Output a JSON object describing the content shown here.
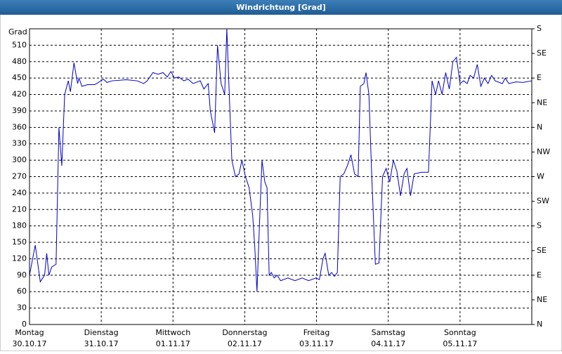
{
  "chart_data": {
    "type": "line",
    "title": "Windrichtung [Grad]",
    "y_label": "Grad",
    "color": "#0000cc",
    "grid": true,
    "xlim": [
      0,
      7
    ],
    "xticks": [
      {
        "value": 0,
        "label": "Montag",
        "date": "30.10.17"
      },
      {
        "value": 1,
        "label": "Dienstag",
        "date": "31.10.17"
      },
      {
        "value": 2,
        "label": "Mittwoch",
        "date": "01.11.17"
      },
      {
        "value": 3,
        "label": "Donnerstag",
        "date": "02.11.17"
      },
      {
        "value": 4,
        "label": "Freitag",
        "date": "03.11.17"
      },
      {
        "value": 5,
        "label": "Samstag",
        "date": "04.11.17"
      },
      {
        "value": 6,
        "label": "Sonntag",
        "date": "05.11.17"
      }
    ],
    "ylim": [
      0,
      540
    ],
    "yticks": [
      0,
      30,
      60,
      90,
      120,
      150,
      180,
      210,
      240,
      270,
      300,
      330,
      360,
      390,
      420,
      450,
      480,
      510
    ],
    "y2lim": [
      0,
      540
    ],
    "y2ticks": [
      {
        "value": 0,
        "label": "N"
      },
      {
        "value": 45,
        "label": "NE"
      },
      {
        "value": 90,
        "label": "E"
      },
      {
        "value": 135,
        "label": "SE"
      },
      {
        "value": 180,
        "label": "S"
      },
      {
        "value": 225,
        "label": "SW"
      },
      {
        "value": 270,
        "label": "W"
      },
      {
        "value": 315,
        "label": "NW"
      },
      {
        "value": 360,
        "label": "N"
      },
      {
        "value": 405,
        "label": "NE"
      },
      {
        "value": 450,
        "label": "E"
      },
      {
        "value": 495,
        "label": "SE"
      },
      {
        "value": 540,
        "label": "S"
      }
    ],
    "x": [
      0,
      0.08,
      0.15,
      0.21,
      0.24,
      0.27,
      0.31,
      0.37,
      0.41,
      0.45,
      0.49,
      0.54,
      0.57,
      0.62,
      0.67,
      0.69,
      0.73,
      0.81,
      0.91,
      0.96,
      1.03,
      1.08,
      1.15,
      1.35,
      1.5,
      1.59,
      1.64,
      1.72,
      1.79,
      1.86,
      1.92,
      1.97,
      2.02,
      2.08,
      2.15,
      2.21,
      2.28,
      2.38,
      2.43,
      2.49,
      2.52,
      2.58,
      2.62,
      2.67,
      2.72,
      2.75,
      2.79,
      2.82,
      2.87,
      2.92,
      2.96,
      3.01,
      3.06,
      3.11,
      3.14,
      3.17,
      3.21,
      3.24,
      3.28,
      3.31,
      3.34,
      3.37,
      3.41,
      3.45,
      3.5,
      3.6,
      3.7,
      3.8,
      3.89,
      3.99,
      4.04,
      4.09,
      4.12,
      4.17,
      4.21,
      4.25,
      4.29,
      4.33,
      4.38,
      4.43,
      4.48,
      4.53,
      4.58,
      4.61,
      4.66,
      4.69,
      4.73,
      4.77,
      4.82,
      4.87,
      4.92,
      4.97,
      5.02,
      5.07,
      5.12,
      5.17,
      5.22,
      5.26,
      5.31,
      5.36,
      5.46,
      5.56,
      5.61,
      5.66,
      5.7,
      5.75,
      5.8,
      5.85,
      5.9,
      5.95,
      6,
      6.05,
      6.1,
      6.14,
      6.19,
      6.24,
      6.29,
      6.34,
      6.39,
      6.44,
      6.49,
      6.59,
      6.63,
      6.68,
      6.78,
      6.88,
      7
    ],
    "values": [
      90,
      145,
      78,
      90,
      130,
      90,
      105,
      110,
      360,
      290,
      420,
      445,
      425,
      478,
      440,
      450,
      435,
      438,
      438,
      442,
      448,
      442,
      445,
      447,
      445,
      440,
      445,
      460,
      457,
      460,
      452,
      462,
      450,
      452,
      445,
      448,
      440,
      445,
      430,
      440,
      390,
      350,
      510,
      440,
      420,
      540,
      400,
      300,
      270,
      275,
      300,
      270,
      250,
      200,
      140,
      60,
      200,
      300,
      260,
      250,
      90,
      95,
      85,
      90,
      80,
      85,
      80,
      85,
      80,
      85,
      82,
      120,
      130,
      90,
      95,
      88,
      95,
      270,
      275,
      290,
      310,
      275,
      270,
      435,
      440,
      460,
      420,
      270,
      110,
      112,
      270,
      285,
      260,
      300,
      280,
      235,
      275,
      285,
      235,
      275,
      278,
      278,
      445,
      420,
      445,
      420,
      460,
      430,
      480,
      488,
      440,
      445,
      440,
      455,
      450,
      475,
      435,
      450,
      440,
      455,
      445,
      440,
      450,
      440,
      443,
      442,
      445
    ]
  }
}
